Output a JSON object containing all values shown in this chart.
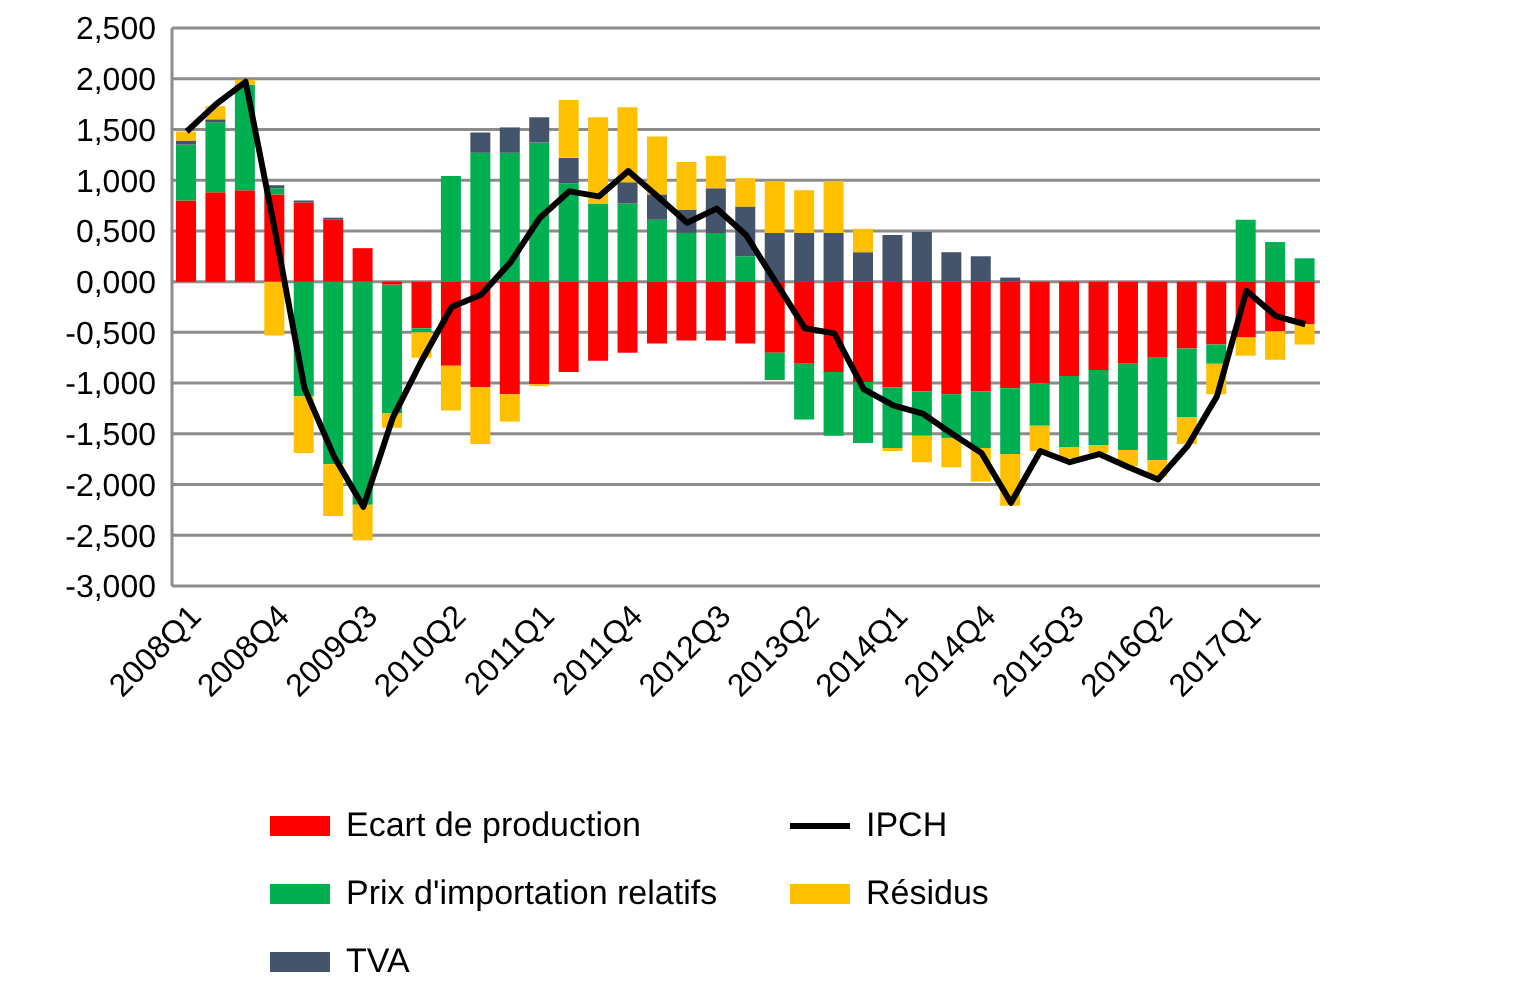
{
  "chart_data": {
    "type": "bar",
    "stacked": true,
    "categories": [
      "2008Q1",
      null,
      null,
      "2008Q4",
      null,
      null,
      "2009Q3",
      null,
      null,
      "2010Q2",
      null,
      null,
      "2011Q1",
      null,
      null,
      "2011Q4",
      null,
      null,
      "2012Q3",
      null,
      null,
      "2013Q2",
      null,
      null,
      "2014Q1",
      null,
      null,
      "2014Q4",
      null,
      null,
      "2015Q3",
      null,
      null,
      "2016Q2",
      null,
      null,
      "2017Q1",
      null,
      null
    ],
    "series": [
      {
        "name": "Ecart de production",
        "color": "#ff0000",
        "values": [
          0.8,
          0.88,
          0.9,
          0.86,
          0.78,
          0.61,
          0.33,
          -0.03,
          -0.46,
          -0.83,
          -1.04,
          -1.11,
          -1.01,
          -0.89,
          -0.78,
          -0.7,
          -0.61,
          -0.58,
          -0.58,
          -0.61,
          -0.7,
          -0.81,
          -0.89,
          -0.99,
          -1.04,
          -1.08,
          -1.11,
          -1.08,
          -1.05,
          -1.0,
          -0.93,
          -0.87,
          -0.81,
          -0.75,
          -0.66,
          -0.62,
          -0.55,
          -0.49,
          -0.42
        ]
      },
      {
        "name": "Prix d'importation relatifs",
        "color": "#00b050",
        "values": [
          0.55,
          0.69,
          1.04,
          0.06,
          -1.13,
          -1.8,
          -2.2,
          -1.27,
          -0.04,
          1.04,
          1.27,
          1.27,
          1.37,
          0.97,
          0.77,
          0.77,
          0.61,
          0.48,
          0.48,
          0.25,
          -0.27,
          -0.55,
          -0.63,
          -0.6,
          -0.6,
          -0.44,
          -0.43,
          -0.56,
          -0.65,
          -0.42,
          -0.7,
          -0.74,
          -0.85,
          -1.01,
          -0.68,
          -0.19,
          0.61,
          0.39,
          0.23
        ]
      },
      {
        "name": "TVA",
        "color": "#44546a",
        "values": [
          0.04,
          0.03,
          0,
          0.03,
          0.02,
          0.02,
          0,
          0,
          0,
          0,
          0.2,
          0.25,
          0.25,
          0.25,
          0,
          0.21,
          0.25,
          0.23,
          0.44,
          0.49,
          0.48,
          0.48,
          0.48,
          0.29,
          0.46,
          0.49,
          0.29,
          0.25,
          0.04,
          0,
          0,
          0,
          0,
          0,
          0,
          0,
          0,
          0,
          0
        ]
      },
      {
        "name": "Résidus",
        "color": "#ffc000",
        "values": [
          0.09,
          0.13,
          0.05,
          -0.53,
          -0.56,
          -0.51,
          -0.35,
          -0.14,
          -0.25,
          -0.44,
          -0.56,
          -0.27,
          -0.02,
          0.57,
          0.85,
          0.74,
          0.57,
          0.47,
          0.32,
          0.28,
          0.51,
          0.42,
          0.51,
          0.23,
          -0.03,
          -0.26,
          -0.29,
          -0.33,
          -0.51,
          -0.25,
          -0.11,
          -0.08,
          -0.16,
          -0.16,
          -0.26,
          -0.3,
          -0.18,
          -0.28,
          -0.2
        ]
      },
      {
        "name": "IPCH",
        "type": "line",
        "color": "#000000",
        "values": [
          1.48,
          1.75,
          1.97,
          0.5,
          -1.05,
          -1.72,
          -2.22,
          -1.34,
          -0.77,
          -0.25,
          -0.13,
          0.19,
          0.63,
          0.89,
          0.84,
          1.09,
          0.84,
          0.58,
          0.72,
          0.46,
          0.0,
          -0.46,
          -0.51,
          -1.06,
          -1.22,
          -1.3,
          -1.5,
          -1.69,
          -2.18,
          -1.67,
          -1.78,
          -1.7,
          -1.83,
          -1.95,
          -1.62,
          -1.13,
          -0.09,
          -0.34,
          -0.42
        ]
      }
    ],
    "ylim": [
      -3,
      2.5
    ],
    "yticks": [
      {
        "value": -3,
        "label": "-3,000"
      },
      {
        "value": -2.5,
        "label": "-2,500"
      },
      {
        "value": -2,
        "label": "-2,000"
      },
      {
        "value": -1.5,
        "label": "-1,500"
      },
      {
        "value": -1,
        "label": "-1,000"
      },
      {
        "value": -0.5,
        "label": "-0,500"
      },
      {
        "value": 0,
        "label": "0,000"
      },
      {
        "value": 0.5,
        "label": "0,500"
      },
      {
        "value": 1,
        "label": "1,000"
      },
      {
        "value": 1.5,
        "label": "1,500"
      },
      {
        "value": 2,
        "label": "2,000"
      },
      {
        "value": 2.5,
        "label": "2,500"
      }
    ],
    "grid": "y",
    "legend": "bottom",
    "marker": "none",
    "line_style": "solid"
  }
}
